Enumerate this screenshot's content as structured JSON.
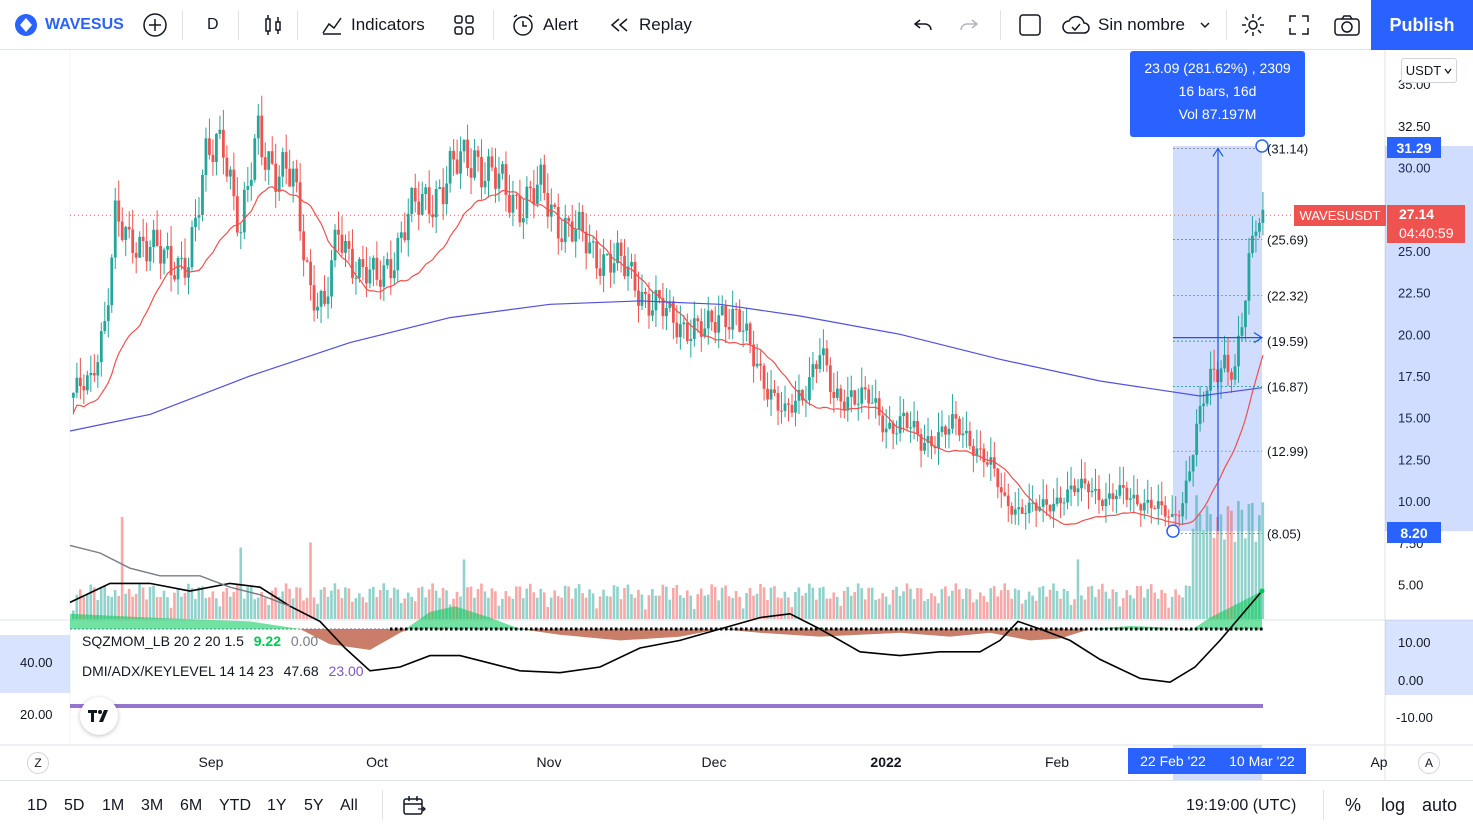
{
  "toolbar": {
    "symbol": "WAVESUS",
    "interval": "D",
    "indicators_label": "Indicators",
    "alert_label": "Alert",
    "replay_label": "Replay",
    "layout_name": "Sin nombre",
    "publish_label": "Publish"
  },
  "currency": "USDT",
  "indicators": {
    "sqzmom_name": "SQZMOM_LB 20 2 20 1.5",
    "sqzmom_value": "9.22",
    "sqzmom_value2": "0.00",
    "dmi_name": "DMI/ADX/KEYLEVEL 14 14 23",
    "dmi_value": "47.68",
    "dmi_value2": "23.00",
    "lower_scale_left": [
      "40.00",
      "20.00"
    ],
    "lower_scale_right": [
      "10.00",
      "0.00",
      "-10.00"
    ]
  },
  "price_axis": [
    "35.00",
    "32.50",
    "30.00",
    "27.50",
    "25.00",
    "22.50",
    "20.00",
    "17.50",
    "15.00",
    "12.50",
    "10.00",
    "7.50",
    "5.00"
  ],
  "time_axis": [
    "Sep",
    "Oct",
    "Nov",
    "Dec",
    "2022",
    "Feb",
    "Ap"
  ],
  "price_labels": {
    "top_measure": "31.29",
    "symbol_tag": "WAVESUSDT",
    "last_price": "27.14",
    "countdown": "04:40:59",
    "bottom_measure": "8.20"
  },
  "fib_levels": [
    {
      "label": "(31.14)",
      "color": "#787b86"
    },
    {
      "label": "(25.69)",
      "color": "#f23645"
    },
    {
      "label": "(22.32)",
      "color": "#4caf50"
    },
    {
      "label": "(19.59)",
      "color": "#089981"
    },
    {
      "label": "(16.87)",
      "color": "#089981"
    },
    {
      "label": "(12.99)",
      "color": "#5b9cf6"
    },
    {
      "label": "(8.05)",
      "color": "#787b86"
    }
  ],
  "measure": {
    "line1": "23.09 (281.62%) , 2309",
    "line2": "16 bars, 16d",
    "line3": "Vol 87.197M",
    "start_date": "22 Feb '22",
    "end_date": "10 Mar '22"
  },
  "bottom": {
    "ranges": [
      "1D",
      "5D",
      "1M",
      "3M",
      "6M",
      "YTD",
      "1Y",
      "5Y",
      "All"
    ],
    "clock": "19:19:00 (UTC)",
    "percent": "%",
    "log": "log",
    "auto": "auto"
  },
  "corner": {
    "zoom": "Z",
    "auto": "A"
  },
  "colors": {
    "up": "#26a69a",
    "down": "#ef5350",
    "accent": "#2962ff",
    "ma_fast": "#f05050",
    "ma_slow": "#5050e0"
  }
}
